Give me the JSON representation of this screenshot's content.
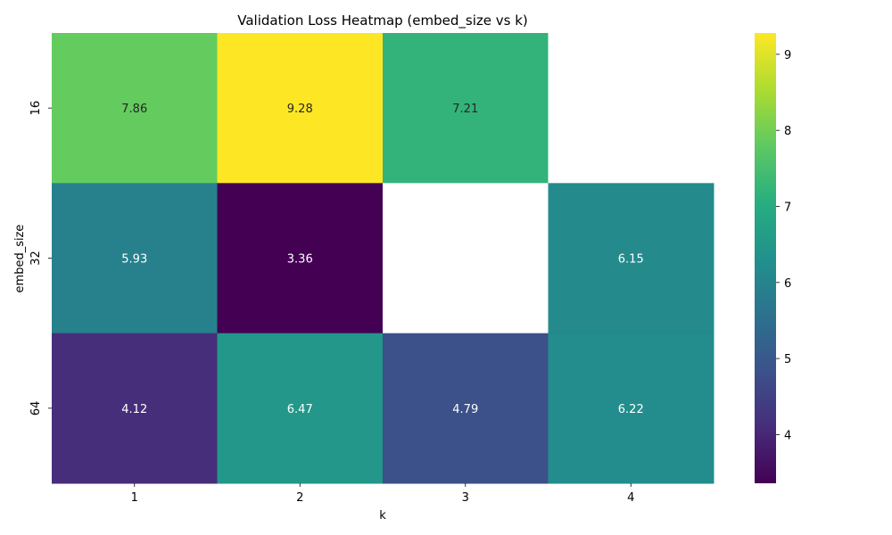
{
  "chart_data": {
    "type": "heatmap",
    "title": "Validation Loss Heatmap (embed_size vs k)",
    "xlabel": "k",
    "ylabel": "embed_size",
    "x_categories": [
      "1",
      "2",
      "3",
      "4"
    ],
    "y_categories": [
      "16",
      "32",
      "64"
    ],
    "values": [
      [
        7.86,
        9.28,
        7.21,
        null
      ],
      [
        5.93,
        3.36,
        null,
        6.15
      ],
      [
        4.12,
        6.47,
        4.79,
        6.22
      ]
    ],
    "value_labels": [
      [
        "7.86",
        "9.28",
        "7.21",
        ""
      ],
      [
        "5.93",
        "3.36",
        "",
        "6.15"
      ],
      [
        "4.12",
        "6.47",
        "4.79",
        "6.22"
      ]
    ],
    "colormap": "viridis",
    "vmin": 3.36,
    "vmax": 9.28,
    "colorbar_ticks": [
      "4",
      "5",
      "6",
      "7",
      "8",
      "9"
    ],
    "missing_color": "#ffffff"
  }
}
